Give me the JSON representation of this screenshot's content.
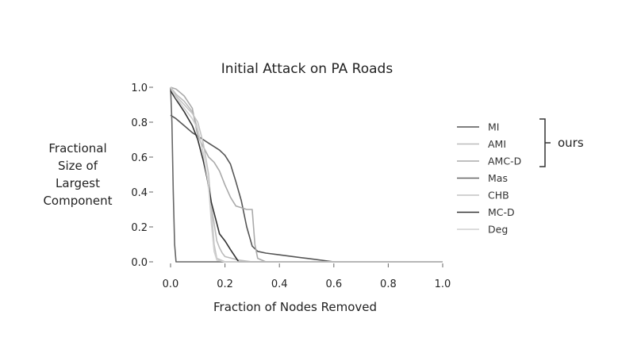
{
  "chart_data": {
    "type": "line",
    "title": "Initial Attack on PA Roads",
    "xlabel": "Fraction of Nodes Removed",
    "ylabel": [
      "Fractional",
      "Size of",
      "Largest",
      "Component"
    ],
    "xlim": [
      0.0,
      1.0
    ],
    "ylim": [
      0.0,
      1.0
    ],
    "xticks": [
      "0.0",
      "0.2",
      "0.4",
      "0.6",
      "0.8",
      "1.0"
    ],
    "yticks": [
      "0.0",
      "0.2",
      "0.4",
      "0.6",
      "0.8",
      "1.0"
    ],
    "grid": false,
    "legend_position": "right",
    "annotation": "ours",
    "annotation_covers": [
      "MI",
      "AMI",
      "AMC-D"
    ],
    "series": [
      {
        "name": "MI",
        "color": "#555555",
        "x": [
          0.0,
          0.02,
          0.05,
          0.08,
          0.1,
          0.12,
          0.14,
          0.16,
          0.18,
          0.2,
          0.22,
          0.24,
          0.26,
          0.28,
          0.3,
          0.32,
          0.35,
          0.4,
          0.5,
          0.6,
          1.0
        ],
        "y": [
          0.84,
          0.82,
          0.78,
          0.74,
          0.72,
          0.7,
          0.68,
          0.66,
          0.64,
          0.61,
          0.56,
          0.46,
          0.35,
          0.2,
          0.09,
          0.06,
          0.05,
          0.04,
          0.02,
          0.0,
          0.0
        ]
      },
      {
        "name": "AMI",
        "color": "#bbbbbb",
        "x": [
          0.0,
          0.02,
          0.05,
          0.08,
          0.1,
          0.12,
          0.14,
          0.16,
          0.17,
          0.18,
          0.19,
          0.2,
          0.25,
          0.3,
          1.0
        ],
        "y": [
          1.0,
          0.96,
          0.92,
          0.86,
          0.76,
          0.62,
          0.42,
          0.22,
          0.12,
          0.08,
          0.05,
          0.03,
          0.01,
          0.0,
          0.0
        ]
      },
      {
        "name": "AMC-D",
        "color": "#aaaaaa",
        "x": [
          0.0,
          0.02,
          0.05,
          0.08,
          0.1,
          0.12,
          0.14,
          0.16,
          0.18,
          0.2,
          0.22,
          0.24,
          0.26,
          0.28,
          0.3,
          0.31,
          0.32,
          0.35,
          1.0
        ],
        "y": [
          1.0,
          0.99,
          0.95,
          0.88,
          0.72,
          0.66,
          0.6,
          0.57,
          0.52,
          0.44,
          0.37,
          0.32,
          0.31,
          0.3,
          0.3,
          0.1,
          0.02,
          0.0,
          0.0
        ]
      },
      {
        "name": "Mas",
        "color": "#666666",
        "x": [
          0.0,
          0.005,
          0.01,
          0.015,
          0.02,
          0.03,
          0.05,
          1.0
        ],
        "y": [
          1.0,
          0.8,
          0.4,
          0.1,
          0.0,
          0.0,
          0.0,
          0.0
        ]
      },
      {
        "name": "CHB",
        "color": "#c4c4c4",
        "x": [
          0.0,
          0.02,
          0.05,
          0.08,
          0.1,
          0.12,
          0.14,
          0.15,
          0.16,
          0.17,
          0.2,
          1.0
        ],
        "y": [
          1.0,
          0.95,
          0.9,
          0.85,
          0.8,
          0.68,
          0.5,
          0.3,
          0.1,
          0.02,
          0.0,
          0.0
        ]
      },
      {
        "name": "MC-D",
        "color": "#333333",
        "x": [
          0.0,
          0.02,
          0.05,
          0.08,
          0.1,
          0.12,
          0.14,
          0.15,
          0.16,
          0.17,
          0.18,
          0.19,
          0.2,
          0.22,
          0.25,
          1.0
        ],
        "y": [
          0.98,
          0.93,
          0.86,
          0.78,
          0.7,
          0.58,
          0.44,
          0.34,
          0.28,
          0.22,
          0.16,
          0.14,
          0.12,
          0.07,
          0.0,
          0.0
        ]
      },
      {
        "name": "Deg",
        "color": "#d0d0d0",
        "x": [
          0.0,
          0.02,
          0.05,
          0.08,
          0.1,
          0.12,
          0.14,
          0.15,
          0.16,
          0.17,
          0.2,
          1.0
        ],
        "y": [
          1.0,
          0.94,
          0.88,
          0.82,
          0.76,
          0.62,
          0.44,
          0.22,
          0.06,
          0.01,
          0.0,
          0.0
        ]
      }
    ]
  }
}
